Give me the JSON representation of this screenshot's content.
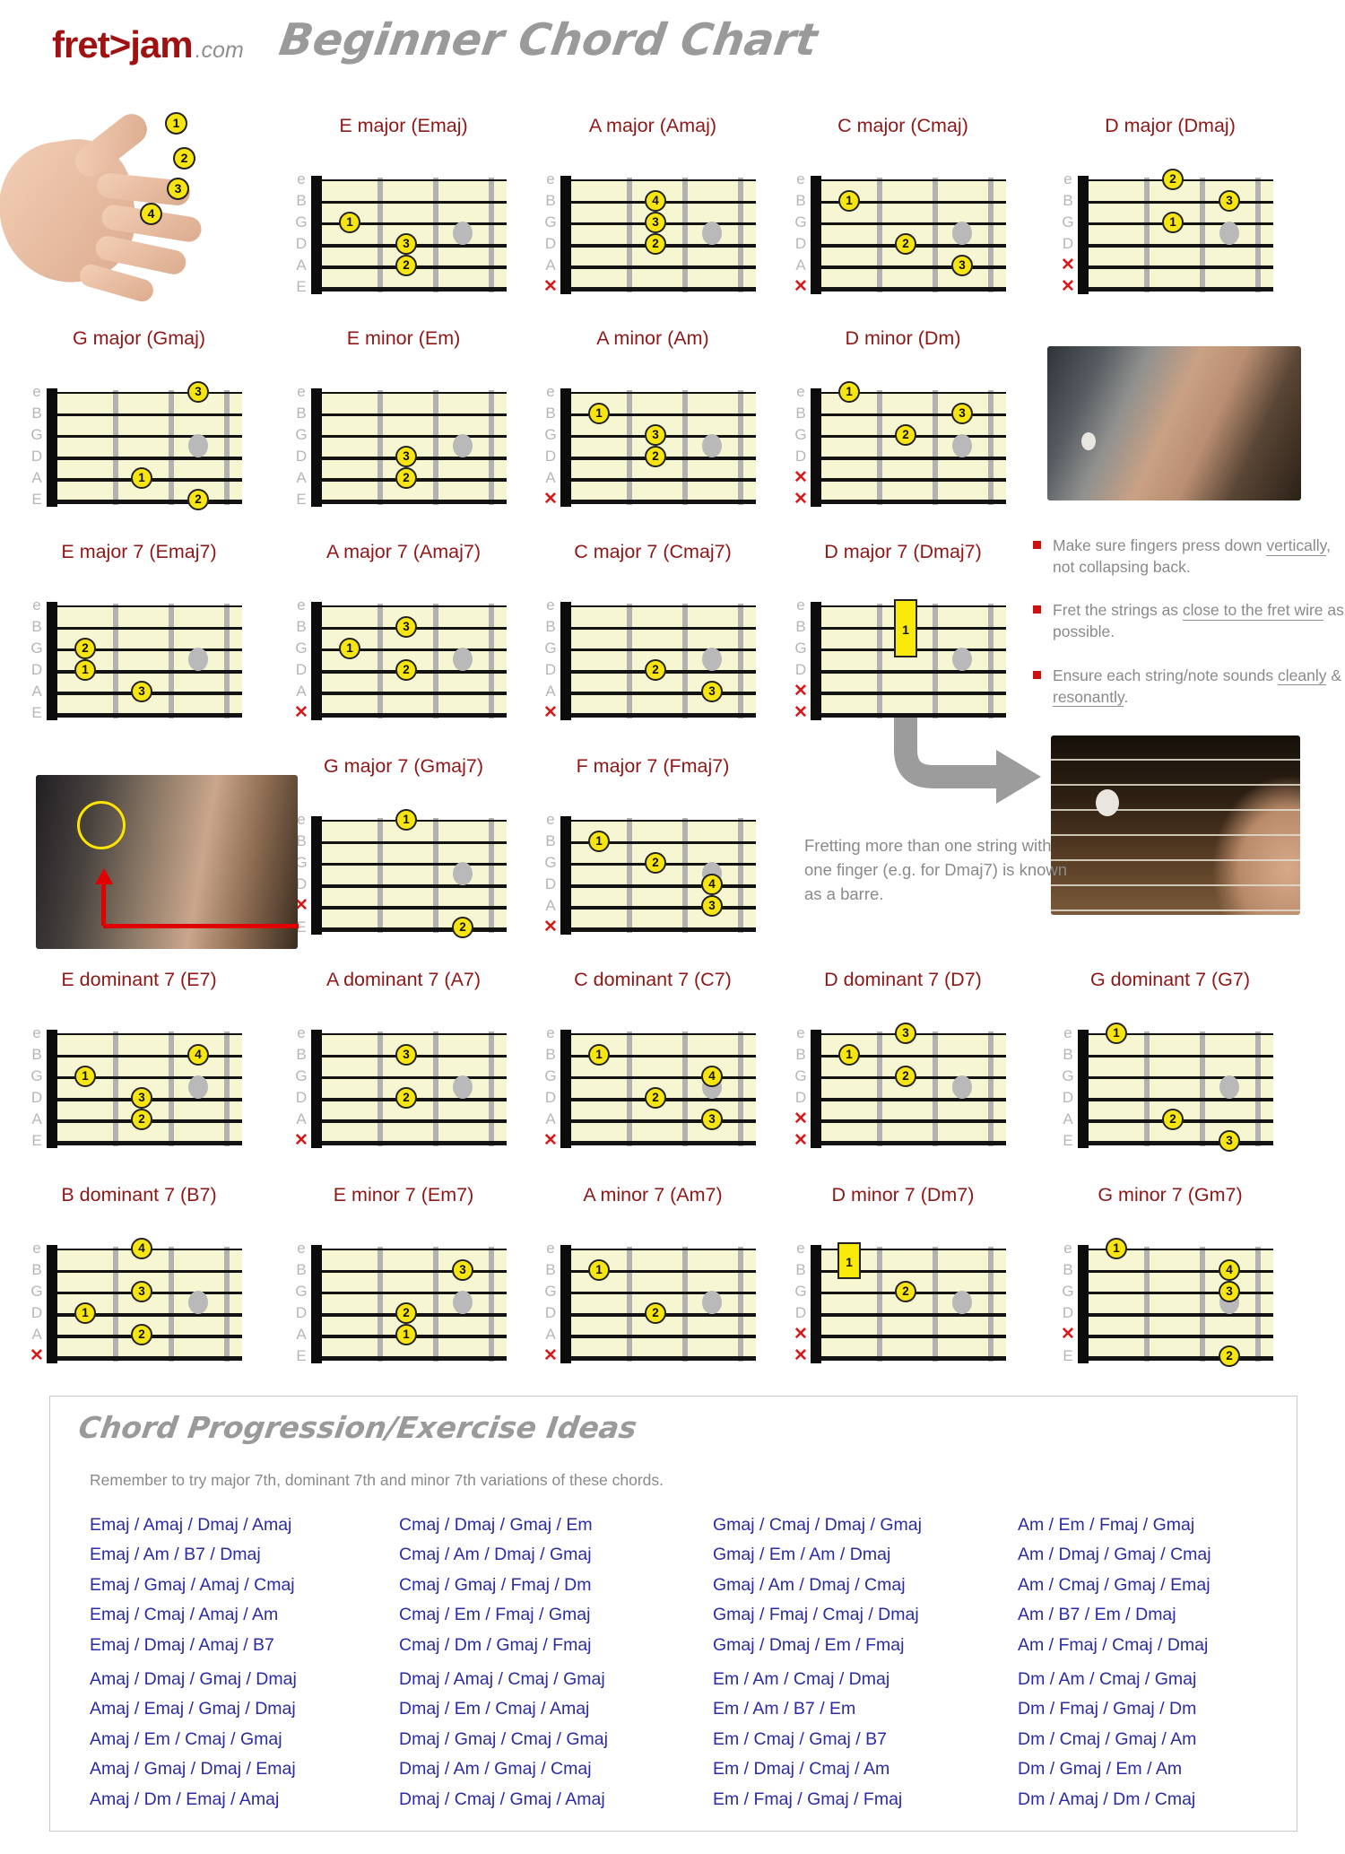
{
  "palette": {
    "chord_title_red": "#8f1717",
    "progression_blue": "#2b2ba6",
    "finger_yellow": "#f7e512",
    "muted_red": "#d61a1a",
    "board_yellow": "#f6f6d3",
    "fret_wire_gray": "#b2b2b2",
    "tip_gray": "#8a8a8a",
    "logo_red": "#a01212",
    "script_gray": "#9a9a9a"
  },
  "header": {
    "logo_fret": "fret",
    "logo_arrow": ">",
    "logo_jam": "jam",
    "logo_tld": ".com",
    "title": "Beginner Chord Chart"
  },
  "hand": {
    "finger_labels": [
      "1",
      "2",
      "3",
      "4"
    ]
  },
  "string_names": [
    "e",
    "B",
    "G",
    "D",
    "A",
    "E"
  ],
  "icons": {
    "muted_x": "✕"
  },
  "tips": {
    "items": [
      {
        "segments": [
          {
            "t": "Make sure fingers press down "
          },
          {
            "t": "vertically",
            "u": true
          },
          {
            "t": ", not collapsing back."
          }
        ]
      },
      {
        "segments": [
          {
            "t": "Fret the strings as "
          },
          {
            "t": "close to the fret wire",
            "u": true
          },
          {
            "t": " as possible."
          }
        ]
      },
      {
        "segments": [
          {
            "t": "Ensure each string/note sounds "
          },
          {
            "t": "cleanly",
            "u": true
          },
          {
            "t": " & "
          },
          {
            "t": "resonantly",
            "u": true
          },
          {
            "t": "."
          }
        ]
      }
    ]
  },
  "barre_note": "Fretting more than one string with one finger (e.g. for Dmaj7) is known as a barre.",
  "chords": [
    {
      "id": "Emaj",
      "name": "E major (Emaj)",
      "grid": [
        0,
        1
      ],
      "fingers": [
        [
          2,
          1,
          1
        ],
        [
          3,
          2,
          3
        ],
        [
          4,
          2,
          2
        ]
      ],
      "muted": []
    },
    {
      "id": "Amaj",
      "name": "A major (Amaj)",
      "grid": [
        0,
        2
      ],
      "fingers": [
        [
          1,
          2,
          4
        ],
        [
          2,
          2,
          3
        ],
        [
          3,
          2,
          2
        ]
      ],
      "muted": [
        5
      ]
    },
    {
      "id": "Cmaj",
      "name": "C major (Cmaj)",
      "grid": [
        0,
        3
      ],
      "fingers": [
        [
          1,
          1,
          1
        ],
        [
          3,
          2,
          2
        ],
        [
          4,
          3,
          3
        ]
      ],
      "muted": [
        5
      ]
    },
    {
      "id": "Dmaj",
      "name": "D major (Dmaj)",
      "grid": [
        0,
        4
      ],
      "fingers": [
        [
          0,
          2,
          2
        ],
        [
          1,
          3,
          3
        ],
        [
          2,
          2,
          1
        ]
      ],
      "muted": [
        4,
        5
      ]
    },
    {
      "id": "Gmaj",
      "name": "G major (Gmaj)",
      "grid": [
        1,
        0
      ],
      "fingers": [
        [
          0,
          3,
          3
        ],
        [
          4,
          2,
          1
        ],
        [
          5,
          3,
          2
        ]
      ],
      "muted": []
    },
    {
      "id": "Em",
      "name": "E minor (Em)",
      "grid": [
        1,
        1
      ],
      "fingers": [
        [
          3,
          2,
          3
        ],
        [
          4,
          2,
          2
        ]
      ],
      "muted": []
    },
    {
      "id": "Am",
      "name": "A minor (Am)",
      "grid": [
        1,
        2
      ],
      "fingers": [
        [
          1,
          1,
          1
        ],
        [
          2,
          2,
          3
        ],
        [
          3,
          2,
          2
        ]
      ],
      "muted": [
        5
      ]
    },
    {
      "id": "Dm",
      "name": "D minor (Dm)",
      "grid": [
        1,
        3
      ],
      "fingers": [
        [
          0,
          1,
          1
        ],
        [
          1,
          3,
          3
        ],
        [
          2,
          2,
          2
        ]
      ],
      "muted": [
        4,
        5
      ]
    },
    {
      "id": "Emaj7",
      "name": "E major 7 (Emaj7)",
      "grid": [
        2,
        0
      ],
      "fingers": [
        [
          2,
          1,
          2
        ],
        [
          3,
          1,
          1
        ],
        [
          4,
          2,
          3
        ]
      ],
      "muted": []
    },
    {
      "id": "Amaj7",
      "name": "A major 7 (Amaj7)",
      "grid": [
        2,
        1
      ],
      "fingers": [
        [
          1,
          2,
          3
        ],
        [
          2,
          1,
          1
        ],
        [
          3,
          2,
          2
        ]
      ],
      "muted": [
        5
      ]
    },
    {
      "id": "Cmaj7",
      "name": "C major 7 (Cmaj7)",
      "grid": [
        2,
        2
      ],
      "fingers": [
        [
          3,
          2,
          2
        ],
        [
          4,
          3,
          3
        ]
      ],
      "muted": [
        5
      ]
    },
    {
      "id": "Dmaj7",
      "name": "D major 7 (Dmaj7)",
      "grid": [
        2,
        3
      ],
      "fingers": [],
      "muted": [
        4,
        5
      ],
      "barre": {
        "fret": 2,
        "from": 0,
        "to": 2,
        "finger": 1
      }
    },
    {
      "id": "Gmaj7",
      "name": "G major 7 (Gmaj7)",
      "grid": [
        3,
        1
      ],
      "fingers": [
        [
          0,
          2,
          1
        ],
        [
          5,
          3,
          2
        ]
      ],
      "muted": [
        4
      ]
    },
    {
      "id": "Fmaj7",
      "name": "F major 7 (Fmaj7)",
      "grid": [
        3,
        2
      ],
      "fingers": [
        [
          1,
          1,
          1
        ],
        [
          2,
          2,
          2
        ],
        [
          3,
          3,
          4
        ],
        [
          4,
          3,
          3
        ]
      ],
      "muted": [
        5
      ]
    },
    {
      "id": "E7",
      "name": "E dominant 7 (E7)",
      "grid": [
        4,
        0
      ],
      "fingers": [
        [
          1,
          3,
          4
        ],
        [
          2,
          1,
          1
        ],
        [
          3,
          2,
          3
        ],
        [
          4,
          2,
          2
        ]
      ],
      "muted": []
    },
    {
      "id": "A7",
      "name": "A dominant 7 (A7)",
      "grid": [
        4,
        1
      ],
      "fingers": [
        [
          1,
          2,
          3
        ],
        [
          3,
          2,
          2
        ]
      ],
      "muted": [
        5
      ]
    },
    {
      "id": "C7",
      "name": "C dominant 7 (C7)",
      "grid": [
        4,
        2
      ],
      "fingers": [
        [
          1,
          1,
          1
        ],
        [
          2,
          3,
          4
        ],
        [
          3,
          2,
          2
        ],
        [
          4,
          3,
          3
        ]
      ],
      "muted": [
        5
      ]
    },
    {
      "id": "D7",
      "name": "D dominant 7 (D7)",
      "grid": [
        4,
        3
      ],
      "fingers": [
        [
          0,
          2,
          3
        ],
        [
          1,
          1,
          1
        ],
        [
          2,
          2,
          2
        ]
      ],
      "muted": [
        4,
        5
      ]
    },
    {
      "id": "G7",
      "name": "G dominant 7 (G7)",
      "grid": [
        4,
        4
      ],
      "fingers": [
        [
          0,
          1,
          1
        ],
        [
          4,
          2,
          2
        ],
        [
          5,
          3,
          3
        ]
      ],
      "muted": []
    },
    {
      "id": "B7",
      "name": "B dominant 7 (B7)",
      "grid": [
        5,
        0
      ],
      "fingers": [
        [
          0,
          2,
          4
        ],
        [
          2,
          2,
          3
        ],
        [
          3,
          1,
          1
        ],
        [
          4,
          2,
          2
        ]
      ],
      "muted": [
        5
      ]
    },
    {
      "id": "Em7",
      "name": "E minor 7 (Em7)",
      "grid": [
        5,
        1
      ],
      "fingers": [
        [
          1,
          3,
          3
        ],
        [
          3,
          2,
          2
        ],
        [
          4,
          2,
          1
        ]
      ],
      "muted": []
    },
    {
      "id": "Am7",
      "name": "A minor 7 (Am7)",
      "grid": [
        5,
        2
      ],
      "fingers": [
        [
          1,
          1,
          1
        ],
        [
          3,
          2,
          2
        ]
      ],
      "muted": [
        5
      ]
    },
    {
      "id": "Dm7",
      "name": "D minor 7 (Dm7)",
      "grid": [
        5,
        3
      ],
      "fingers": [
        [
          2,
          2,
          2
        ]
      ],
      "muted": [
        4,
        5
      ],
      "barre": {
        "fret": 1,
        "from": 0,
        "to": 1,
        "finger": 1
      }
    },
    {
      "id": "Gm7",
      "name": "G minor 7 (Gm7)",
      "grid": [
        5,
        4
      ],
      "fingers": [
        [
          0,
          1,
          1
        ],
        [
          1,
          3,
          4
        ],
        [
          2,
          3,
          3
        ],
        [
          5,
          3,
          2
        ]
      ],
      "muted": [
        4
      ]
    }
  ],
  "progressions": {
    "title": "Chord Progression/Exercise Ideas",
    "subtitle": "Remember to try major 7th, dominant 7th and minor 7th variations of these chords.",
    "columns": [
      {
        "groups": [
          [
            "Emaj / Amaj / Dmaj / Amaj",
            "Emaj / Am / B7 / Dmaj",
            "Emaj / Gmaj / Amaj / Cmaj",
            "Emaj / Cmaj / Amaj / Am",
            "Emaj / Dmaj / Amaj / B7"
          ],
          [
            "Amaj / Dmaj / Gmaj / Dmaj",
            "Amaj / Emaj / Gmaj / Dmaj",
            "Amaj / Em / Cmaj / Gmaj",
            "Amaj / Gmaj / Dmaj / Emaj",
            "Amaj / Dm / Emaj / Amaj"
          ]
        ]
      },
      {
        "groups": [
          [
            "Cmaj / Dmaj / Gmaj / Em",
            "Cmaj / Am / Dmaj / Gmaj",
            "Cmaj / Gmaj / Fmaj / Dm",
            "Cmaj / Em / Fmaj / Gmaj",
            "Cmaj / Dm / Gmaj / Fmaj"
          ],
          [
            "Dmaj / Amaj / Cmaj / Gmaj",
            "Dmaj / Em / Cmaj / Amaj",
            "Dmaj / Gmaj / Cmaj / Gmaj",
            "Dmaj / Am / Gmaj / Cmaj",
            "Dmaj / Cmaj / Gmaj / Amaj"
          ]
        ]
      },
      {
        "groups": [
          [
            "Gmaj / Cmaj / Dmaj / Gmaj",
            "Gmaj / Em / Am / Dmaj",
            "Gmaj / Am / Dmaj / Cmaj",
            "Gmaj / Fmaj / Cmaj / Dmaj",
            "Gmaj / Dmaj / Em / Fmaj"
          ],
          [
            "Em / Am / Cmaj / Dmaj",
            "Em / Am / B7 / Em",
            "Em / Cmaj / Gmaj / B7",
            "Em / Dmaj / Cmaj / Am",
            "Em / Fmaj / Gmaj / Fmaj"
          ]
        ]
      },
      {
        "groups": [
          [
            "Am / Em / Fmaj / Gmaj",
            "Am / Dmaj / Gmaj / Cmaj",
            "Am / Cmaj / Gmaj / Emaj",
            "Am / B7 / Em / Dmaj",
            "Am / Fmaj / Cmaj / Dmaj"
          ],
          [
            "Dm / Am / Cmaj / Gmaj",
            "Dm / Fmaj / Gmaj / Dm",
            "Dm / Cmaj / Gmaj / Am",
            "Dm / Gmaj / Em / Am",
            "Dm / Amaj / Dm / Cmaj"
          ]
        ]
      }
    ]
  }
}
